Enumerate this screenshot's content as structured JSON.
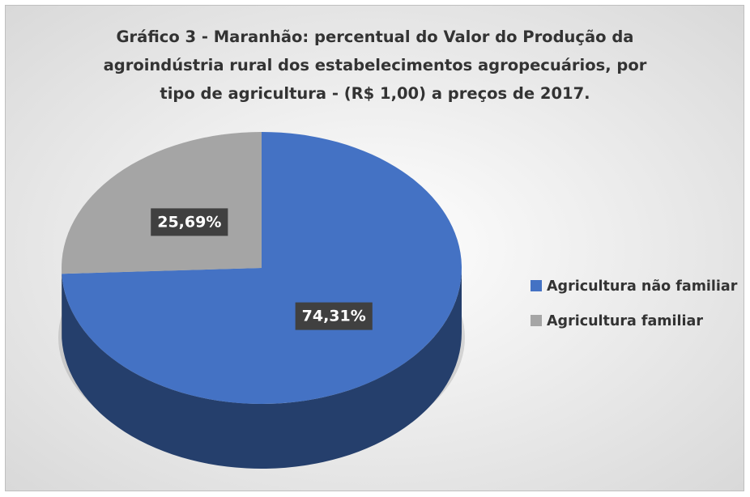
{
  "chart_data": {
    "type": "pie",
    "title": "Gráfico 3 - Maranhão: percentual do Valor do Produção da agroindústria rural dos estabelecimentos agropecuários, por tipo de agricultura - (R$ 1,00) a preços de 2017.",
    "categories": [
      "Agricultura não familiar",
      "Agricultura familiar"
    ],
    "values": [
      74.31,
      25.69
    ],
    "value_labels": [
      "74,31%",
      "25,69%"
    ],
    "colors": [
      "#4472c4",
      "#a5a5a5"
    ],
    "legend": "right"
  }
}
